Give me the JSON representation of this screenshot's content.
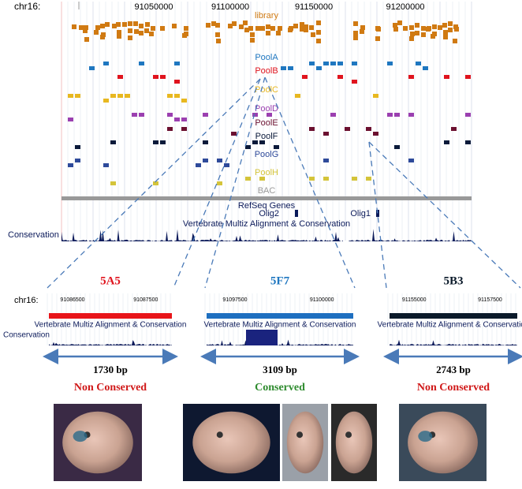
{
  "browser": {
    "chrom": "chr16:",
    "ticks": [
      "91050000",
      "91100000",
      "91150000",
      "91200000"
    ],
    "tracks": [
      "library",
      "PoolA",
      "PoolB",
      "PoolC",
      "PoolD",
      "PoolE",
      "PoolF",
      "PoolG",
      "PoolH",
      "BAC"
    ],
    "genes_title": "RefSeq Genes",
    "genes": [
      "Olig2",
      "Olig1"
    ],
    "conservation_title": "Vertebrate Multiz Alignment & Conservation",
    "conservation_label": "Conservation"
  },
  "panels": [
    {
      "name": "5A5",
      "chrom": "chr16:",
      "ticks": [
        "91086500",
        "91087500"
      ],
      "track_title": "Vertebrate Multiz Alignment & Conservation",
      "conservation_label": "Conservation",
      "length": "1730 bp",
      "status": "Non Conserved"
    },
    {
      "name": "5F7",
      "ticks": [
        "91097500",
        "91100000"
      ],
      "track_title": "Vertebrate Multiz Alignment & Conservation",
      "length": "3109 bp",
      "status": "Conserved"
    },
    {
      "name": "5B3",
      "ticks": [
        "91155000",
        "91157500"
      ],
      "track_title": "Vertebrate Multiz Alignment & Conservation",
      "length": "2743 bp",
      "status": "Non Conserved"
    }
  ]
}
